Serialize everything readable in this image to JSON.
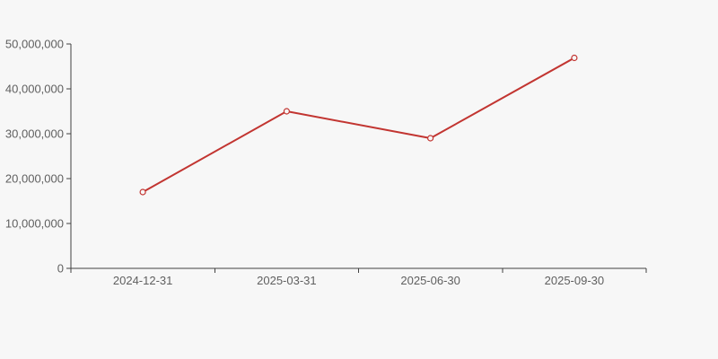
{
  "chart": {
    "background": "#f7f7f7",
    "axis_color": "#424242",
    "label_color": "#5f5f5f"
  },
  "chart_data": {
    "type": "line",
    "title": "",
    "xlabel": "",
    "ylabel": "",
    "categories": [
      "2024-12-31",
      "2025-03-31",
      "2025-06-30",
      "2025-09-30"
    ],
    "values": [
      17000000,
      35000000,
      29000000,
      46900000
    ],
    "ylim": [
      0,
      50000000
    ],
    "ytick_interval": 10000000,
    "ytick_labels": [
      "0",
      "10,000,000",
      "20,000,000",
      "30,000,000",
      "40,000,000",
      "50,000,000"
    ],
    "grid": false,
    "legend": false,
    "line_color": "#c23531",
    "marker_style": "open-circle"
  }
}
